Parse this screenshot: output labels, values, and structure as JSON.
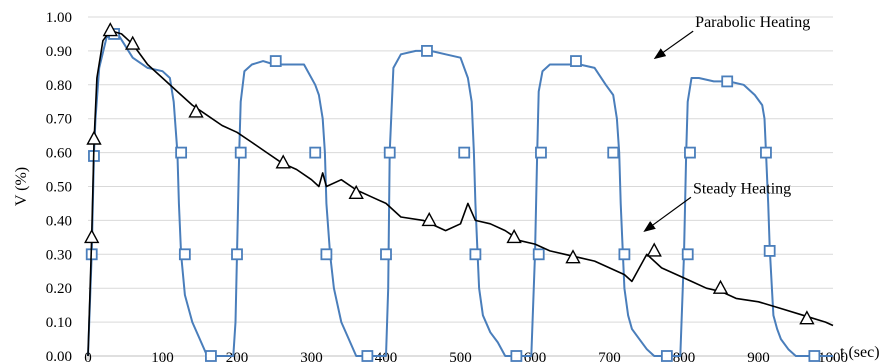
{
  "chart_data": {
    "type": "line",
    "title": "",
    "xlabel": "t (sec)",
    "ylabel": "V (%)",
    "xlim": [
      0,
      1000
    ],
    "ylim": [
      0,
      1.0
    ],
    "xticks": [
      0,
      100,
      200,
      300,
      400,
      500,
      600,
      700,
      800,
      900,
      1000
    ],
    "yticks": [
      0.0,
      0.1,
      0.2,
      0.3,
      0.4,
      0.5,
      0.6,
      0.7,
      0.8,
      0.9,
      1.0
    ],
    "xtick_labels": [
      "0",
      "100",
      "200",
      "300",
      "400",
      "500",
      "600",
      "700",
      "800",
      "900",
      "1000"
    ],
    "ytick_labels": [
      "0.00",
      "0.10",
      "0.20",
      "0.30",
      "0.40",
      "0.50",
      "0.60",
      "0.70",
      "0.80",
      "0.90",
      "1.00"
    ],
    "grid": true,
    "annotations": [
      {
        "text": "Parabolic Heating",
        "x_from": 815,
        "y_from": 0.97,
        "x_to": 762,
        "y_to": 0.88
      },
      {
        "text": "Steady Heating",
        "x_from": 812,
        "y_from": 0.48,
        "x_to": 748,
        "y_to": 0.37
      }
    ],
    "series": [
      {
        "marker": "square",
        "color": "#4a7ebb",
        "x": [
          0,
          5,
          8,
          10,
          15,
          25,
          40,
          60,
          80,
          100,
          110,
          115,
          120,
          122,
          125,
          130,
          140,
          150,
          160,
          170,
          180,
          195,
          198,
          200,
          203,
          205,
          210,
          220,
          235,
          250,
          270,
          290,
          305,
          310,
          315,
          318,
          320,
          325,
          330,
          340,
          350,
          360,
          375,
          390,
          400,
          403,
          405,
          410,
          420,
          440,
          460,
          480,
          500,
          510,
          515,
          518,
          520,
          523,
          525,
          530,
          540,
          550,
          560,
          575,
          595,
          600,
          603,
          605,
          610,
          620,
          640,
          660,
          680,
          695,
          705,
          710,
          713,
          715,
          718,
          720,
          725,
          730,
          740,
          750,
          760,
          775,
          795,
          800,
          803,
          805,
          810,
          820,
          840,
          860,
          880,
          895,
          905,
          908,
          910,
          913,
          915,
          918,
          920,
          925,
          930,
          940,
          950,
          960,
          975,
          990,
          1000
        ],
        "y": [
          0.0,
          0.3,
          0.6,
          0.7,
          0.85,
          0.94,
          0.95,
          0.88,
          0.85,
          0.84,
          0.82,
          0.75,
          0.6,
          0.45,
          0.3,
          0.18,
          0.1,
          0.05,
          0.0,
          0.0,
          0.0,
          0.0,
          0.1,
          0.3,
          0.6,
          0.75,
          0.84,
          0.86,
          0.87,
          0.86,
          0.86,
          0.86,
          0.8,
          0.77,
          0.7,
          0.6,
          0.45,
          0.3,
          0.2,
          0.1,
          0.05,
          0.0,
          0.0,
          0.0,
          0.0,
          0.2,
          0.6,
          0.85,
          0.89,
          0.9,
          0.9,
          0.89,
          0.88,
          0.82,
          0.75,
          0.6,
          0.45,
          0.3,
          0.2,
          0.12,
          0.07,
          0.04,
          0.0,
          0.0,
          0.0,
          0.3,
          0.6,
          0.78,
          0.84,
          0.86,
          0.86,
          0.86,
          0.85,
          0.8,
          0.77,
          0.7,
          0.6,
          0.45,
          0.3,
          0.2,
          0.12,
          0.08,
          0.05,
          0.02,
          0.0,
          0.0,
          0.0,
          0.3,
          0.6,
          0.75,
          0.82,
          0.82,
          0.81,
          0.81,
          0.8,
          0.77,
          0.74,
          0.7,
          0.6,
          0.45,
          0.32,
          0.2,
          0.12,
          0.08,
          0.05,
          0.02,
          0.0,
          0.0,
          0.0,
          0.0,
          0.0
        ],
        "markers_x": [
          5,
          8,
          35,
          125,
          130,
          165,
          200,
          205,
          252,
          305,
          320,
          375,
          400,
          405,
          455,
          505,
          520,
          575,
          605,
          608,
          655,
          705,
          720,
          777,
          805,
          808,
          858,
          910,
          915,
          975
        ],
        "markers_y": [
          0.3,
          0.59,
          0.95,
          0.6,
          0.3,
          0.0,
          0.3,
          0.6,
          0.87,
          0.6,
          0.3,
          0.0,
          0.3,
          0.6,
          0.9,
          0.6,
          0.3,
          0.0,
          0.3,
          0.6,
          0.87,
          0.6,
          0.3,
          0.0,
          0.3,
          0.6,
          0.81,
          0.6,
          0.31,
          0.0
        ]
      },
      {
        "marker": "triangle",
        "color": "#000000",
        "x": [
          0,
          5,
          8,
          12,
          20,
          30,
          45,
          60,
          80,
          100,
          120,
          140,
          160,
          180,
          200,
          220,
          240,
          260,
          280,
          300,
          310,
          315,
          320,
          340,
          360,
          380,
          400,
          420,
          450,
          480,
          500,
          510,
          520,
          540,
          560,
          580,
          600,
          620,
          640,
          660,
          680,
          700,
          720,
          730,
          750,
          770,
          790,
          810,
          830,
          850,
          870,
          900,
          930,
          960,
          990,
          1000
        ],
        "y": [
          0.0,
          0.35,
          0.63,
          0.82,
          0.93,
          0.96,
          0.95,
          0.92,
          0.86,
          0.82,
          0.78,
          0.74,
          0.71,
          0.68,
          0.66,
          0.63,
          0.6,
          0.57,
          0.55,
          0.52,
          0.5,
          0.54,
          0.5,
          0.52,
          0.49,
          0.47,
          0.45,
          0.41,
          0.4,
          0.37,
          0.39,
          0.45,
          0.4,
          0.39,
          0.37,
          0.34,
          0.33,
          0.31,
          0.3,
          0.29,
          0.28,
          0.26,
          0.24,
          0.22,
          0.3,
          0.26,
          0.24,
          0.22,
          0.2,
          0.19,
          0.17,
          0.16,
          0.14,
          0.12,
          0.1,
          0.09
        ],
        "markers_x": [
          5,
          8,
          30,
          60,
          145,
          262,
          360,
          458,
          572,
          651,
          760,
          849,
          965
        ],
        "markers_y": [
          0.35,
          0.64,
          0.96,
          0.92,
          0.72,
          0.57,
          0.48,
          0.4,
          0.35,
          0.29,
          0.31,
          0.2,
          0.11
        ]
      }
    ]
  }
}
